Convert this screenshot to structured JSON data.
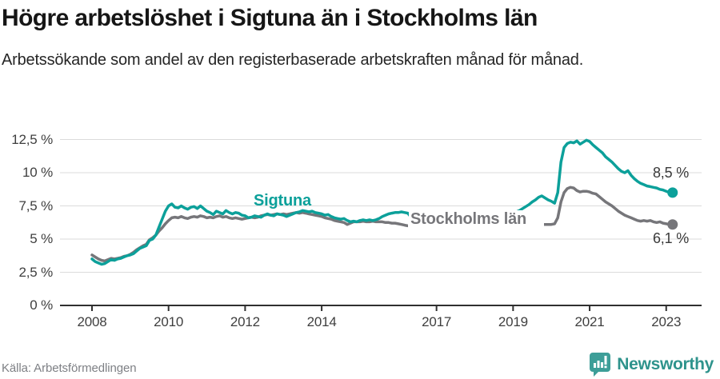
{
  "header": {
    "title": "Högre arbetslöshet i Sigtuna än i Stockholms län",
    "subtitle": "Arbetssökande som andel av den registerbaserade arbetskraften månad för månad."
  },
  "footer": {
    "source": "Källa: Arbetsförmedlingen",
    "brand": "Newsworthy",
    "brand_icon": "newsworthy-speech-bubble-bar-chart-icon",
    "brand_color": "#3D9E98"
  },
  "chart_data": {
    "type": "line",
    "title": "Högre arbetslöshet i Sigtuna än i Stockholms län",
    "subtitle": "Arbetssökande som andel av den registerbaserade arbetskraften månad för månad.",
    "source": "Källa: Arbetsförmedlingen",
    "grid": true,
    "legend_position": "inline-labels",
    "colors": {
      "grid": "#DBDBDB",
      "axis": "#2F2F2F",
      "tick_text": "#3F3F3F"
    },
    "y_axis": {
      "range": [
        0,
        12.5
      ],
      "unit": "%",
      "ticks": [
        {
          "value": 0,
          "label": "0 %"
        },
        {
          "value": 2.5,
          "label": "2,5 %"
        },
        {
          "value": 5,
          "label": "5 %"
        },
        {
          "value": 7.5,
          "label": "7,5 %"
        },
        {
          "value": 10,
          "label": "10 %"
        },
        {
          "value": 12.5,
          "label": "12,5 %"
        }
      ]
    },
    "x_axis": {
      "start": "2008-01",
      "end": "2023-03",
      "frequency": "monthly",
      "ticks": [
        {
          "value": 2008,
          "label": "2008"
        },
        {
          "value": 2010,
          "label": "2010"
        },
        {
          "value": 2012,
          "label": "2012"
        },
        {
          "value": 2014,
          "label": "2014"
        },
        {
          "value": 2017,
          "label": "2017"
        },
        {
          "value": 2019,
          "label": "2019"
        },
        {
          "value": 2021,
          "label": "2021"
        },
        {
          "value": 2023,
          "label": "2023"
        }
      ]
    },
    "series": [
      {
        "name": "Sigtuna",
        "color": "#0CA09A",
        "end_label": "8,5 %",
        "end_value": 8.5,
        "values": [
          3.5,
          3.3,
          3.2,
          3.1,
          3.15,
          3.3,
          3.45,
          3.4,
          3.5,
          3.55,
          3.65,
          3.75,
          3.8,
          3.9,
          4.1,
          4.3,
          4.4,
          4.5,
          4.9,
          5.0,
          5.3,
          5.9,
          6.5,
          7.1,
          7.5,
          7.65,
          7.4,
          7.35,
          7.5,
          7.35,
          7.25,
          7.4,
          7.45,
          7.3,
          7.5,
          7.3,
          7.1,
          7.0,
          6.85,
          7.1,
          7.0,
          6.9,
          7.15,
          7.0,
          6.9,
          7.0,
          6.95,
          6.8,
          6.75,
          6.6,
          6.65,
          6.75,
          6.7,
          6.65,
          6.8,
          6.9,
          6.8,
          6.75,
          6.9,
          6.85,
          6.8,
          6.7,
          6.8,
          6.9,
          7.0,
          7.05,
          7.15,
          7.1,
          7.05,
          7.1,
          7.0,
          6.95,
          6.9,
          6.8,
          6.85,
          6.7,
          6.6,
          6.55,
          6.5,
          6.55,
          6.4,
          6.3,
          6.35,
          6.3,
          6.4,
          6.45,
          6.4,
          6.45,
          6.4,
          6.45,
          6.55,
          6.7,
          6.8,
          6.9,
          6.95,
          7.0,
          7.0,
          7.05,
          7.0,
          6.95,
          6.65,
          6.55,
          6.6,
          6.7,
          6.6,
          6.7,
          6.65,
          6.6,
          6.65,
          6.55,
          6.6,
          6.7,
          6.6,
          6.6,
          6.7,
          6.75,
          6.65,
          6.7,
          6.8,
          6.75,
          6.8,
          6.7,
          6.75,
          6.85,
          6.8,
          6.85,
          6.95,
          6.9,
          6.85,
          6.95,
          7.0,
          6.95,
          7.0,
          7.05,
          7.15,
          7.3,
          7.45,
          7.6,
          7.8,
          7.95,
          8.15,
          8.25,
          8.1,
          7.95,
          7.85,
          7.7,
          8.5,
          10.8,
          11.9,
          12.2,
          12.3,
          12.25,
          12.4,
          12.15,
          12.3,
          12.45,
          12.35,
          12.1,
          11.9,
          11.7,
          11.5,
          11.2,
          11.0,
          10.8,
          10.55,
          10.3,
          10.1,
          10.0,
          10.15,
          9.8,
          9.55,
          9.35,
          9.2,
          9.1,
          9.0,
          8.95,
          8.9,
          8.85,
          8.75,
          8.7,
          8.6,
          8.5,
          8.5
        ]
      },
      {
        "name": "Stockholms län",
        "color": "#76767A",
        "end_label": "6,1 %",
        "end_value": 6.1,
        "values": [
          3.8,
          3.65,
          3.5,
          3.4,
          3.35,
          3.45,
          3.55,
          3.5,
          3.55,
          3.6,
          3.7,
          3.75,
          3.85,
          4.0,
          4.2,
          4.35,
          4.5,
          4.6,
          4.95,
          5.1,
          5.3,
          5.6,
          5.85,
          6.15,
          6.4,
          6.6,
          6.65,
          6.6,
          6.7,
          6.6,
          6.55,
          6.65,
          6.7,
          6.65,
          6.75,
          6.7,
          6.6,
          6.65,
          6.6,
          6.7,
          6.75,
          6.65,
          6.7,
          6.6,
          6.55,
          6.6,
          6.55,
          6.5,
          6.55,
          6.6,
          6.65,
          6.6,
          6.65,
          6.75,
          6.8,
          6.85,
          6.8,
          6.85,
          6.9,
          6.85,
          6.9,
          6.85,
          6.9,
          6.95,
          7.0,
          6.95,
          7.0,
          6.95,
          6.9,
          6.85,
          6.8,
          6.75,
          6.7,
          6.6,
          6.55,
          6.5,
          6.4,
          6.35,
          6.3,
          6.25,
          6.1,
          6.2,
          6.3,
          6.3,
          6.3,
          6.35,
          6.3,
          6.3,
          6.35,
          6.3,
          6.3,
          6.3,
          6.25,
          6.25,
          6.2,
          6.2,
          6.15,
          6.1,
          6.05,
          6.0,
          6.0,
          5.95,
          6.0,
          6.0,
          5.95,
          5.95,
          5.9,
          5.9,
          5.9,
          5.9,
          5.9,
          5.9,
          5.9,
          5.9,
          5.95,
          5.95,
          5.9,
          5.9,
          5.95,
          5.95,
          5.95,
          5.9,
          5.9,
          5.9,
          5.9,
          5.9,
          5.95,
          5.95,
          5.95,
          6.0,
          6.0,
          6.0,
          6.0,
          6.0,
          6.05,
          6.05,
          6.1,
          6.1,
          6.1,
          6.1,
          6.1,
          6.1,
          6.1,
          6.1,
          6.1,
          6.15,
          6.6,
          7.8,
          8.5,
          8.8,
          8.9,
          8.85,
          8.65,
          8.55,
          8.6,
          8.6,
          8.55,
          8.45,
          8.4,
          8.2,
          8.0,
          7.8,
          7.65,
          7.5,
          7.3,
          7.1,
          6.95,
          6.8,
          6.7,
          6.6,
          6.5,
          6.4,
          6.35,
          6.4,
          6.35,
          6.4,
          6.3,
          6.25,
          6.3,
          6.2,
          6.15,
          6.1,
          6.1
        ]
      }
    ]
  }
}
